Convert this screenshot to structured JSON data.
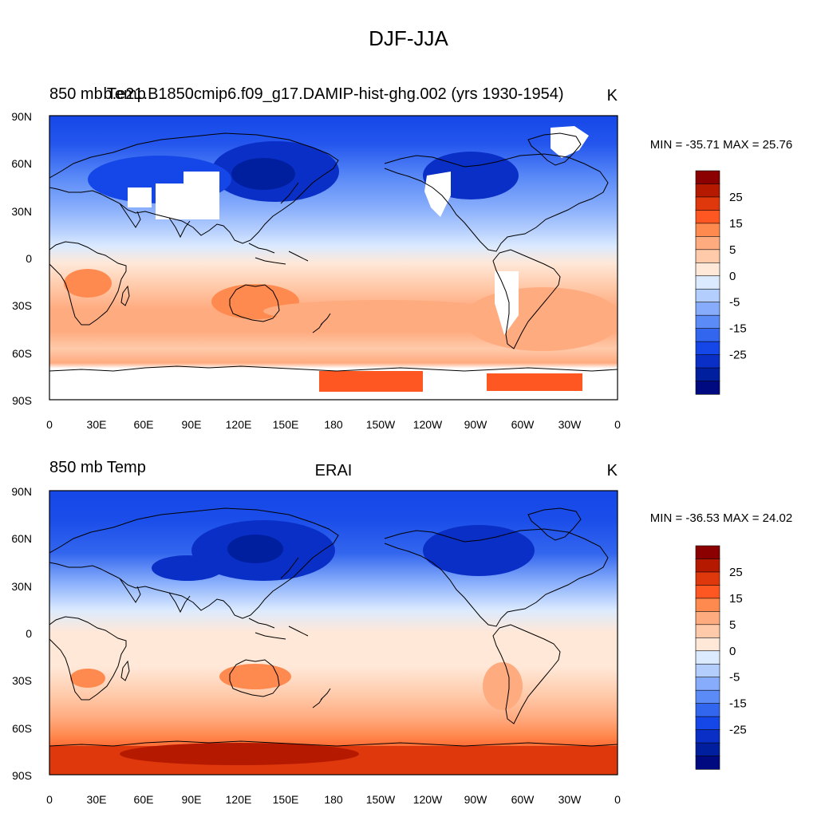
{
  "figure": {
    "title": "DJF-JJA"
  },
  "panels": [
    {
      "left_title": "850 mb Temp",
      "center_title": "b.e21.B1850cmip6.f09_g17.DAMIP-hist-ghg.002 (yrs 1930-1954)",
      "units": "K",
      "minmax": "MIN = -35.71 MAX =  25.76"
    },
    {
      "left_title": "850 mb Temp",
      "center_title": "ERAI",
      "units": "K",
      "minmax": "MIN = -36.53 MAX =  24.02"
    }
  ],
  "axes": {
    "y_ticks": [
      "90N",
      "60N",
      "30N",
      "0",
      "30S",
      "60S",
      "90S"
    ],
    "x_ticks": [
      "0",
      "30E",
      "60E",
      "90E",
      "120E",
      "150E",
      "180",
      "150W",
      "120W",
      "90W",
      "60W",
      "30W",
      "0"
    ]
  },
  "colorbar": {
    "labels": [
      "25",
      "15",
      "5",
      "0",
      "-5",
      "-15",
      "-25"
    ],
    "colors": [
      "#8b0000",
      "#b51a00",
      "#e0380d",
      "#ff5722",
      "#ff8a50",
      "#ffab80",
      "#ffcaaa",
      "#ffe8d8",
      "#dbeafe",
      "#b3cdfd",
      "#86acfb",
      "#5b8bf7",
      "#3366ee",
      "#1547e8",
      "#0a2fc7",
      "#001f9f",
      "#000a80"
    ]
  },
  "palette": {
    "ocean_tropics": "#ffe8d8",
    "land_mask": "#ffffff",
    "coast": "#000000"
  }
}
